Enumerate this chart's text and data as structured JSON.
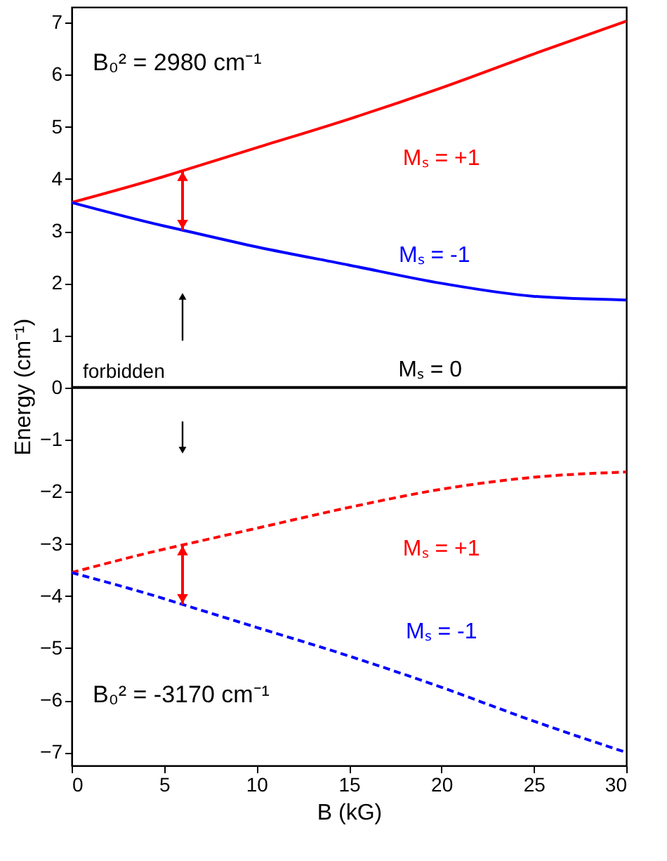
{
  "chart_data": {
    "type": "line",
    "xlabel": "B (kG)",
    "ylabel": "Energy (cm⁻¹)",
    "x": [
      0,
      5,
      6,
      10,
      15,
      20,
      25,
      30
    ],
    "series": [
      {
        "name": "Mₛ = +1",
        "color": "#ff0000",
        "line_style": "solid",
        "values": [
          3.55,
          4.05,
          4.16,
          4.6,
          5.15,
          5.75,
          6.4,
          7.03
        ]
      },
      {
        "name": "Mₛ = -1",
        "color": "#0000ff",
        "line_style": "solid",
        "values": [
          3.55,
          3.1,
          3.02,
          2.7,
          2.35,
          2.0,
          1.75,
          1.68
        ]
      },
      {
        "name": "Mₛ = 0",
        "color": "#000000",
        "line_style": "solid",
        "values": [
          0,
          0,
          0,
          0,
          0,
          0,
          0,
          0
        ]
      },
      {
        "name": "Mₛ = +1",
        "color": "#ff0000",
        "line_style": "dashed",
        "values": [
          -3.55,
          -3.1,
          -3.02,
          -2.7,
          -2.3,
          -1.95,
          -1.72,
          -1.62
        ]
      },
      {
        "name": "Mₛ = -1",
        "color": "#0000ff",
        "line_style": "dashed",
        "values": [
          -3.55,
          -4.05,
          -4.16,
          -4.6,
          -5.15,
          -5.75,
          -6.4,
          -7.0
        ]
      }
    ],
    "annotations": [
      "B₀² = 2980 cm⁻¹",
      "B₀² = -3170 cm⁻¹",
      "forbidden"
    ],
    "xlim": [
      0,
      30
    ],
    "xticks": [
      0,
      5,
      10,
      15,
      20,
      25,
      30
    ],
    "ylim": [
      -7.25,
      7.3
    ],
    "yticks": [
      -7,
      -6,
      -5,
      -4,
      -3,
      -2,
      -1,
      0,
      1,
      2,
      3,
      4,
      5,
      6,
      7
    ],
    "grid": false
  }
}
